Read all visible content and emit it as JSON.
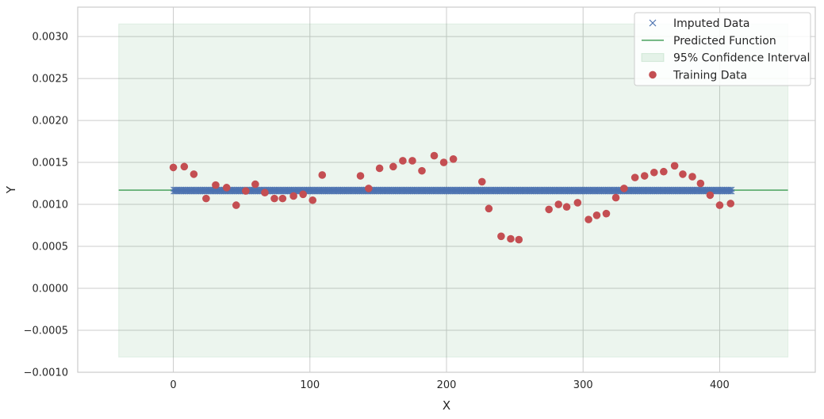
{
  "chart_data": {
    "type": "scatter",
    "xlabel": "X",
    "ylabel": "Y",
    "xlim": [
      -70,
      470
    ],
    "ylim": [
      -0.001,
      0.00335
    ],
    "xticks": [
      0,
      100,
      200,
      300,
      400
    ],
    "xtick_labels": [
      "0",
      "100",
      "200",
      "300",
      "400"
    ],
    "yticks": [
      -0.001,
      -0.0005,
      0.0,
      0.0005,
      0.001,
      0.0015,
      0.002,
      0.0025,
      0.003
    ],
    "ytick_labels": [
      "−0.0010",
      "−0.0005",
      "0.0000",
      "0.0005",
      "0.0010",
      "0.0015",
      "0.0020",
      "0.0025",
      "0.0030"
    ],
    "grid": true,
    "legend_position": "top-right",
    "legend": [
      {
        "label": "Imputed Data",
        "marker": "x",
        "color": "#4c72b0"
      },
      {
        "label": "Predicted Function",
        "marker": "line",
        "color": "#55a868"
      },
      {
        "label": "95% Confidence Interval",
        "marker": "patch",
        "color": "#55a868"
      },
      {
        "label": "Training Data",
        "marker": "o",
        "color": "#c44e52"
      }
    ],
    "series": [
      {
        "name": "Imputed Data",
        "kind": "x-markers",
        "x_range": [
          0,
          409
        ],
        "x_step": 1,
        "y_values": [
          0.00115,
          0.00118
        ]
      },
      {
        "name": "Predicted Function",
        "kind": "line",
        "x": [
          -40,
          450
        ],
        "y": [
          0.00117,
          0.00117
        ]
      },
      {
        "name": "95% Confidence Interval",
        "kind": "band",
        "x": [
          -40,
          450
        ],
        "lower": -0.00082,
        "upper": 0.00315
      },
      {
        "name": "Training Data",
        "kind": "points",
        "x": [
          0,
          8,
          15,
          24,
          31,
          39,
          46,
          53,
          60,
          67,
          74,
          80,
          88,
          95,
          102,
          109,
          137,
          143,
          151,
          161,
          168,
          175,
          182,
          191,
          198,
          205,
          226,
          231,
          240,
          247,
          253,
          275,
          282,
          288,
          296,
          304,
          310,
          317,
          324,
          330,
          338,
          345,
          352,
          359,
          367,
          373,
          380,
          386,
          393,
          400,
          408
        ],
        "y": [
          0.00144,
          0.00145,
          0.00136,
          0.00107,
          0.00123,
          0.0012,
          0.00099,
          0.00116,
          0.00124,
          0.00114,
          0.00107,
          0.00107,
          0.0011,
          0.00112,
          0.00105,
          0.00135,
          0.00134,
          0.00119,
          0.00143,
          0.00145,
          0.00152,
          0.00152,
          0.0014,
          0.00158,
          0.0015,
          0.00154,
          0.00127,
          0.00095,
          0.00062,
          0.00059,
          0.00058,
          0.00094,
          0.001,
          0.00097,
          0.00102,
          0.00082,
          0.00087,
          0.00089,
          0.00108,
          0.00119,
          0.00132,
          0.00134,
          0.00138,
          0.00139,
          0.00146,
          0.00136,
          0.00133,
          0.00125,
          0.00111,
          0.00099,
          0.00101
        ]
      }
    ],
    "colors": {
      "imputed": "#4c72b0",
      "predicted": "#55a868",
      "band": "#55a868",
      "training": "#c44e52",
      "grid": "#cccccc",
      "frame": "#cccccc"
    }
  }
}
